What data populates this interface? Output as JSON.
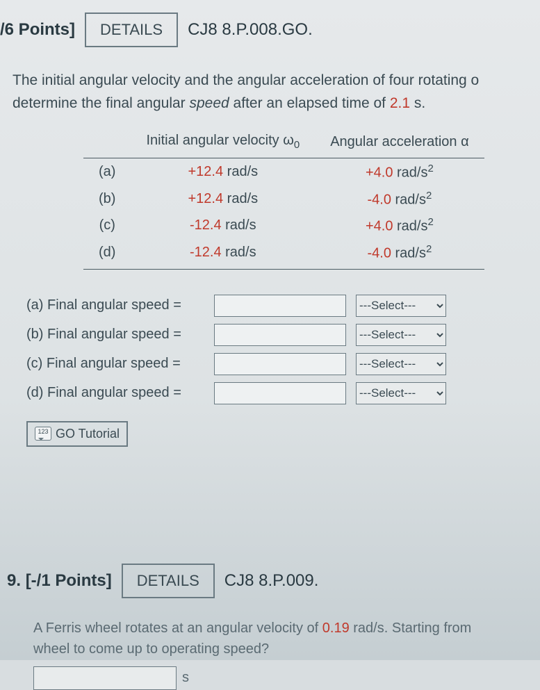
{
  "q1": {
    "points_label": "/6 Points]",
    "details_label": "DETAILS",
    "code": "CJ8 8.P.008.GO.",
    "prompt_part1": "The initial angular velocity and the angular acceleration of four rotating o",
    "prompt_part2": "determine the final angular ",
    "prompt_em": "speed",
    "prompt_part3": " after an elapsed time of ",
    "time_value": "2.1",
    "time_unit": " s.",
    "table": {
      "col1_header": "Initial angular velocity ω",
      "col1_sub": "0",
      "col2_header": "Angular acceleration α",
      "rows": [
        {
          "label": "(a)",
          "omega": "+12.4",
          "omega_unit": " rad/s",
          "alpha": "+4.0",
          "alpha_unit": " rad/s"
        },
        {
          "label": "(b)",
          "omega": "+12.4",
          "omega_unit": " rad/s",
          "alpha": "-4.0",
          "alpha_unit": " rad/s"
        },
        {
          "label": "(c)",
          "omega": "-12.4",
          "omega_unit": " rad/s",
          "alpha": "+4.0",
          "alpha_unit": " rad/s"
        },
        {
          "label": "(d)",
          "omega": "-12.4",
          "omega_unit": " rad/s",
          "alpha": "-4.0",
          "alpha_unit": " rad/s"
        }
      ],
      "alpha_sup": "2"
    },
    "answers": [
      {
        "label": "(a) Final angular speed ="
      },
      {
        "label": "(b) Final angular speed ="
      },
      {
        "label": "(c) Final angular speed ="
      },
      {
        "label": "(d) Final angular speed ="
      }
    ],
    "select_placeholder": "---Select---",
    "tutorial_label": "GO Tutorial",
    "tutorial_icon_text": "123"
  },
  "q2": {
    "number": "9.",
    "points_label": "[-/1 Points]",
    "details_label": "DETAILS",
    "code": "CJ8 8.P.009.",
    "prompt_part1": "A Ferris wheel rotates at an angular velocity of ",
    "omega_value": "0.19",
    "omega_unit": " rad/s",
    "prompt_part2": ". Starting from",
    "prompt_part3": "wheel to come up to operating speed?",
    "unit": "s"
  },
  "colors": {
    "red": "#c0392b",
    "text": "#3a4a52",
    "border": "#6a7a82",
    "bg_top": "#e6e9eb",
    "bg_bottom": "#c5ced2"
  }
}
